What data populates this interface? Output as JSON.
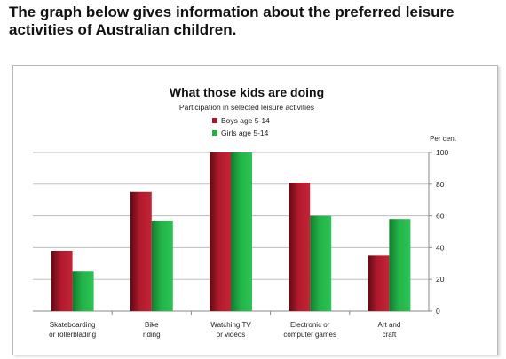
{
  "prompt": {
    "line1": "The graph below gives information about the preferred leisure",
    "line2": "activities of Australian children."
  },
  "chart_data": {
    "type": "bar",
    "title": "What those kids are doing",
    "subtitle": "Participation in selected leisure activities",
    "unit_label": "Per cent",
    "categories": [
      [
        "Skateboarding",
        "or rollerblading"
      ],
      [
        "Bike",
        "riding"
      ],
      [
        "Watching TV",
        "or videos"
      ],
      [
        "Electronic or",
        "computer games"
      ],
      [
        "Art and",
        "craft"
      ]
    ],
    "series": [
      {
        "name": "Boys age 5-14",
        "color": "#a8182a",
        "values": [
          38,
          75,
          100,
          81,
          35
        ]
      },
      {
        "name": "Girls age 5-14",
        "color": "#20b045",
        "values": [
          25,
          57,
          100,
          60,
          58
        ]
      }
    ],
    "ylim": [
      0,
      100
    ],
    "yticks": [
      0,
      20,
      40,
      60,
      80,
      100
    ],
    "grid": true,
    "legend_position": "top-center",
    "y_axis_side": "right"
  }
}
